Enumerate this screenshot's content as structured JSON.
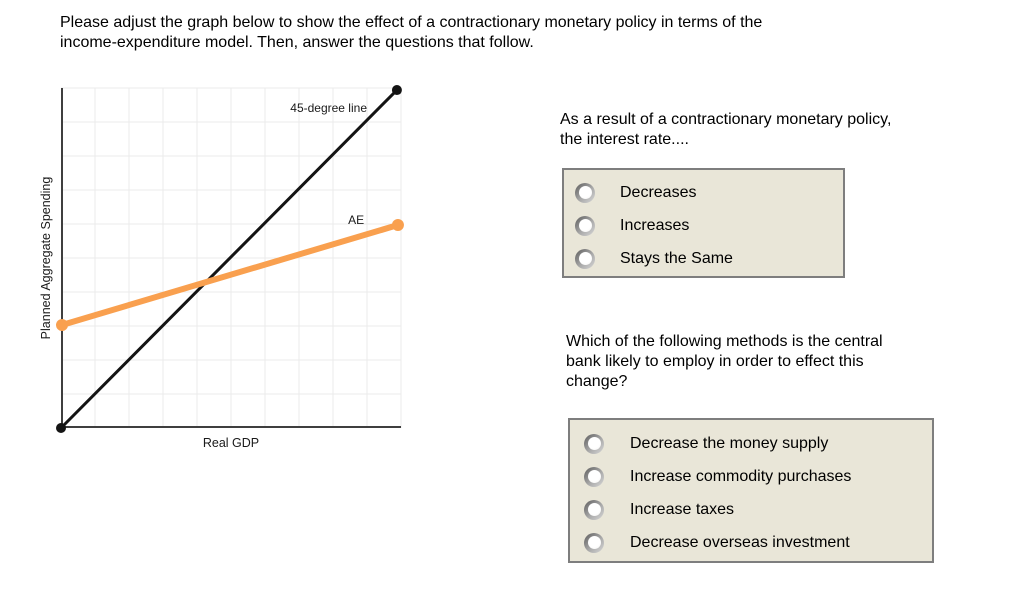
{
  "header": {
    "line1": "Please adjust the graph below to show the effect of a contractionary monetary policy in terms of the",
    "line2": "income-expenditure model. Then, answer the questions that follow."
  },
  "chart_data": {
    "type": "line",
    "title": "",
    "xlabel": "Real GDP",
    "ylabel": "Planned Aggregate Spending",
    "x_range": [
      0,
      1
    ],
    "y_range": [
      0,
      1
    ],
    "grid": true,
    "grid_divisions": 10,
    "axis_ticks": "none",
    "series": [
      {
        "name": "45-degree line",
        "color": "#141414",
        "width": 3,
        "dot_radius": 5,
        "draggable": false,
        "points": [
          [
            0,
            0
          ],
          [
            0.988,
            0.994
          ]
        ]
      },
      {
        "name": "AE",
        "color": "#f9a04f",
        "width": 6,
        "dot_radius": 6,
        "draggable": true,
        "points": [
          [
            0.003,
            0.303
          ],
          [
            0.991,
            0.597
          ]
        ]
      }
    ],
    "annotations": [
      {
        "text": "45-degree line",
        "x": 0.9,
        "y": 0.93,
        "anchor": "end"
      },
      {
        "text": "AE",
        "x": 0.868,
        "y": 0.6,
        "anchor": "middle"
      }
    ],
    "colors": {
      "grid": "#ebebeb",
      "axis": "#3f3f3f"
    }
  },
  "questions": [
    {
      "text_line1": "As a result of a contractionary monetary policy,",
      "text_line2": "the interest rate....",
      "options": [
        "Decreases",
        "Increases",
        "Stays the Same"
      ]
    },
    {
      "text_line1": "Which of the following methods is the central",
      "text_line2": "bank likely to employ in order to effect this",
      "text_line3": "change?",
      "options": [
        "Decrease the money supply",
        "Increase commodity purchases",
        "Increase taxes",
        "Decrease overseas investment"
      ]
    }
  ],
  "panel": {
    "background": "#e9e6d8",
    "border": "#7e7e7e"
  }
}
